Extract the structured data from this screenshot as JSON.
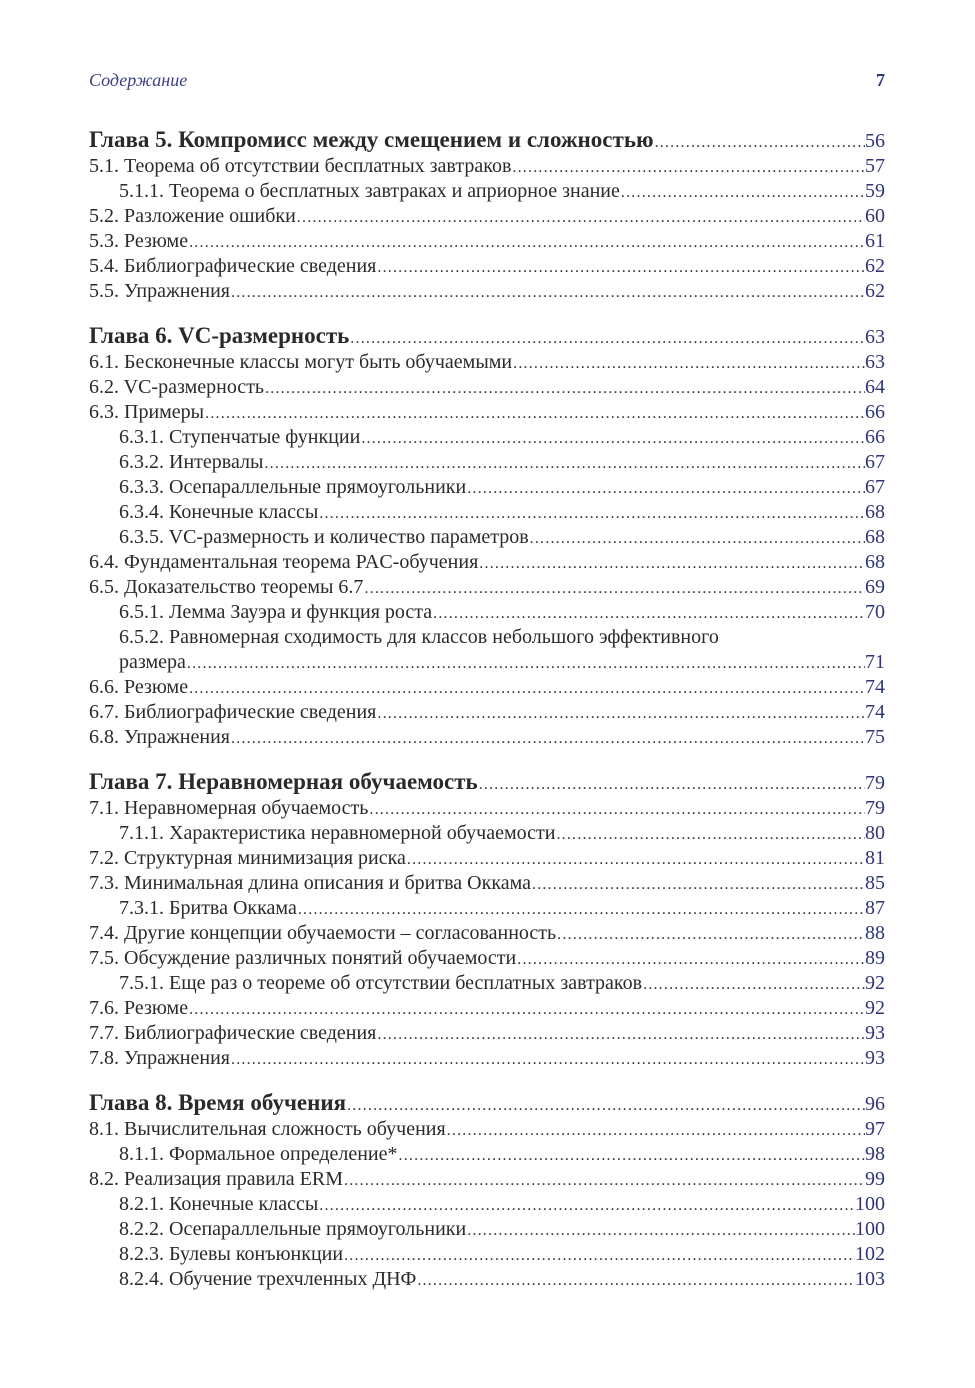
{
  "header": {
    "running_title": "Содержание",
    "page_number": "7"
  },
  "entries": [
    {
      "level": 1,
      "text": "Глава 5. Компромисс между смещением и сложностью",
      "page": "56"
    },
    {
      "level": 2,
      "text": "5.1. Теорема об отсутствии бесплатных завтраков",
      "page": "57"
    },
    {
      "level": 3,
      "text": "5.1.1. Теорема о бесплатных завтраках и априорное знание",
      "page": "59"
    },
    {
      "level": 2,
      "text": "5.2. Разложение ошибки",
      "page": "60"
    },
    {
      "level": 2,
      "text": "5.3. Резюме",
      "page": "61"
    },
    {
      "level": 2,
      "text": "5.4. Библиографические сведения",
      "page": "62"
    },
    {
      "level": 2,
      "text": "5.5. Упражнения",
      "page": "62"
    },
    {
      "level": 1,
      "text": "Глава 6. VC-размерность",
      "page": "63"
    },
    {
      "level": 2,
      "text": "6.1. Бесконечные классы могут быть обучаемыми",
      "page": "63"
    },
    {
      "level": 2,
      "text": "6.2. VC-размерность",
      "page": "64"
    },
    {
      "level": 2,
      "text": "6.3. Примеры",
      "page": "66"
    },
    {
      "level": 3,
      "text": "6.3.1. Ступенчатые функции",
      "page": "66"
    },
    {
      "level": 3,
      "text": "6.3.2. Интервалы",
      "page": "67"
    },
    {
      "level": 3,
      "text": "6.3.3. Осепараллельные прямоугольники",
      "page": "67"
    },
    {
      "level": 3,
      "text": "6.3.4. Конечные классы",
      "page": "68"
    },
    {
      "level": 3,
      "text": "6.3.5. VC-размерность и количество параметров",
      "page": "68"
    },
    {
      "level": 2,
      "text": "6.4. Фундаментальная теорема PAC-обучения",
      "page": "68"
    },
    {
      "level": 2,
      "text": "6.5. Доказательство теоремы 6.7",
      "page": "69"
    },
    {
      "level": 3,
      "text": "6.5.1. Лемма Зауэра и функция роста",
      "page": "70"
    },
    {
      "level": 3,
      "text": "6.5.2. Равномерная сходимость для классов небольшого эффективного",
      "text_cont": "размера",
      "page": "71"
    },
    {
      "level": 2,
      "text": "6.6. Резюме",
      "page": "74"
    },
    {
      "level": 2,
      "text": "6.7. Библиографические сведения",
      "page": "74"
    },
    {
      "level": 2,
      "text": "6.8. Упражнения",
      "page": "75"
    },
    {
      "level": 1,
      "text": "Глава 7. Неравномерная обучаемость",
      "page": "79"
    },
    {
      "level": 2,
      "text": "7.1. Неравномерная обучаемость",
      "page": "79"
    },
    {
      "level": 3,
      "text": "7.1.1. Характеристика неравномерной обучаемости",
      "page": "80"
    },
    {
      "level": 2,
      "text": "7.2. Структурная минимизация риска",
      "page": "81"
    },
    {
      "level": 2,
      "text": "7.3. Минимальная длина описания и бритва Оккама",
      "page": "85"
    },
    {
      "level": 3,
      "text": "7.3.1. Бритва Оккама",
      "page": "87"
    },
    {
      "level": 2,
      "text": "7.4. Другие концепции обучаемости – согласованность",
      "page": "88"
    },
    {
      "level": 2,
      "text": "7.5. Обсуждение различных понятий обучаемости",
      "page": "89"
    },
    {
      "level": 3,
      "text": "7.5.1. Еще раз о теореме об отсутствии бесплатных завтраков",
      "page": "92"
    },
    {
      "level": 2,
      "text": "7.6. Резюме",
      "page": "92"
    },
    {
      "level": 2,
      "text": "7.7. Библиографические сведения",
      "page": "93"
    },
    {
      "level": 2,
      "text": "7.8. Упражнения",
      "page": "93"
    },
    {
      "level": 1,
      "text": "Глава 8. Время обучения",
      "page": "96"
    },
    {
      "level": 2,
      "text": "8.1. Вычислительная сложность обучения",
      "page": "97"
    },
    {
      "level": 3,
      "text": "8.1.1. Формальное определение*",
      "page": "98"
    },
    {
      "level": 2,
      "text": "8.2. Реализация правила ERM",
      "page": "99"
    },
    {
      "level": 3,
      "text": "8.2.1. Конечные классы",
      "page": "100"
    },
    {
      "level": 3,
      "text": "8.2.2. Осепараллельные прямоугольники",
      "page": "100"
    },
    {
      "level": 3,
      "text": "8.2.3. Булевы конъюнкции",
      "page": "102"
    },
    {
      "level": 3,
      "text": "8.2.4. Обучение трехчленных ДНФ",
      "page": "103"
    }
  ]
}
